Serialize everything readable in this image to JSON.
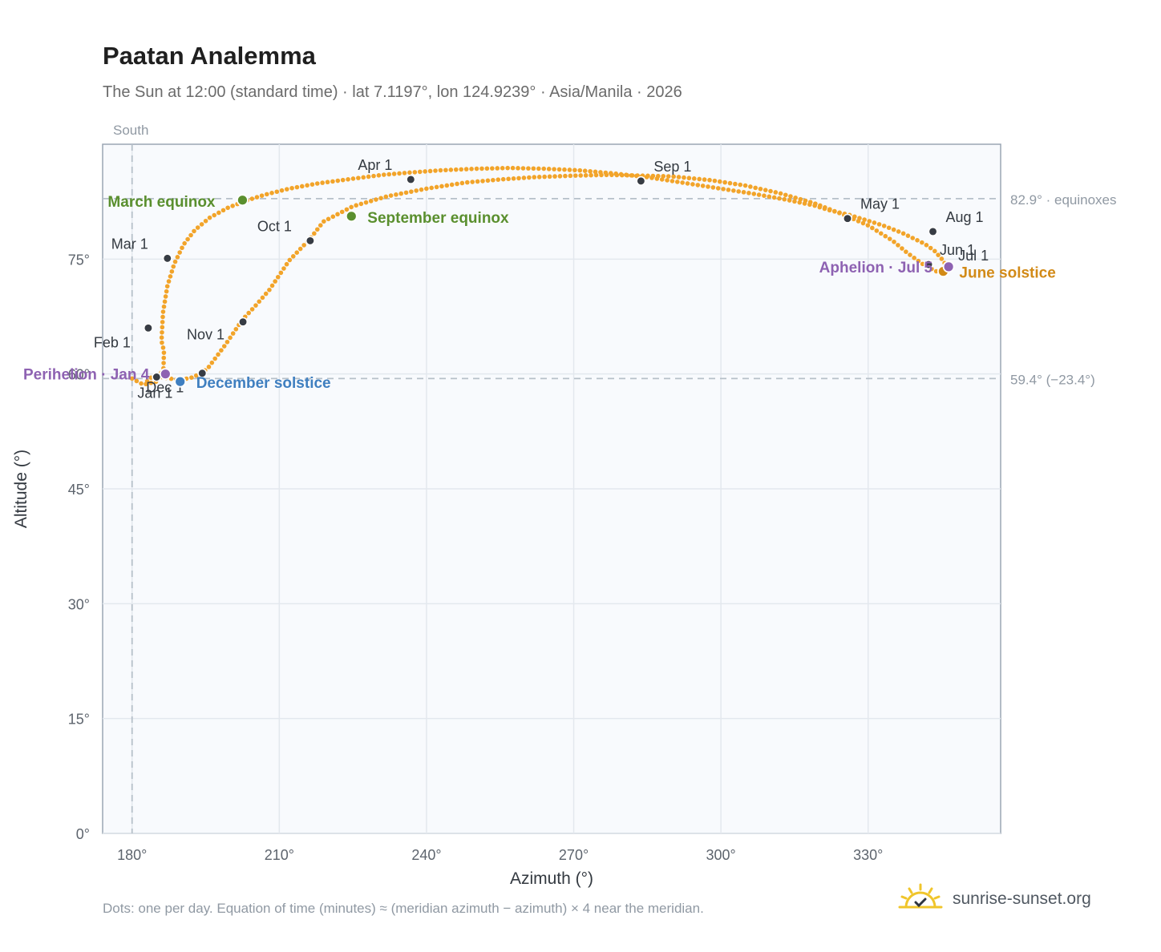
{
  "header": {
    "title": "Paatan Analemma",
    "subtitle": "The Sun at 12:00 (standard time) · lat 7.1197°, lon 124.9239° · Asia/Manila · 2026"
  },
  "footer": {
    "note": "Dots: one per day. Equation of time (minutes) ≈ (meridian azimuth − azimuth) × 4 near the meridian.",
    "brand": "sunrise-sunset.org",
    "brand_icon": "sun-icon"
  },
  "colors": {
    "path": "#f2a42a",
    "month_marker": "#373c44",
    "equinox": "#5a8f2e",
    "june_solstice": "#d28a17",
    "december_solstice": "#3f7fc0",
    "apsis": "#8e62b2",
    "reference_line": "#b6c0c9",
    "plot_background": "#f8fafd"
  },
  "chart_data": {
    "type": "scatter",
    "xlabel": "Azimuth (°)",
    "ylabel": "Altitude (°)",
    "xlim": [
      174,
      357
    ],
    "ylim": [
      0,
      90
    ],
    "x_ticks": [
      180,
      210,
      240,
      270,
      300,
      330
    ],
    "x_tick_labels": [
      "180°",
      "210°",
      "240°",
      "270°",
      "300°",
      "330°"
    ],
    "y_ticks": [
      0,
      15,
      30,
      45,
      60,
      75
    ],
    "y_tick_labels": [
      "0°",
      "15°",
      "30°",
      "45°",
      "60°",
      "75°"
    ],
    "grid": true,
    "meridian": {
      "azimuth": 180,
      "label": "South"
    },
    "reference_lines": [
      {
        "altitude": 82.9,
        "label": "82.9° · equinoxes"
      },
      {
        "altitude": 59.4,
        "label": "59.4° (−23.4°)"
      }
    ],
    "daily_path": [
      [
        180.0,
        59.4
      ],
      [
        182.3,
        58.6
      ],
      [
        184.9,
        59.0
      ],
      [
        186.4,
        60.7
      ],
      [
        186.5,
        63.0
      ],
      [
        186.0,
        64.3
      ],
      [
        186.3,
        68.0
      ],
      [
        187.2,
        71.5
      ],
      [
        188.6,
        74.4
      ],
      [
        190.5,
        76.9
      ],
      [
        192.8,
        78.8
      ],
      [
        195.8,
        80.4
      ],
      [
        199.5,
        81.7
      ],
      [
        203.1,
        82.6
      ],
      [
        207.0,
        83.4
      ],
      [
        212.0,
        84.2
      ],
      [
        218.0,
        84.9
      ],
      [
        225.0,
        85.5
      ],
      [
        231.0,
        86.0
      ],
      [
        236.5,
        86.3
      ],
      [
        243.0,
        86.6
      ],
      [
        250.0,
        86.8
      ],
      [
        257.0,
        86.9
      ],
      [
        264.0,
        86.8
      ],
      [
        271.0,
        86.6
      ],
      [
        278.0,
        86.2
      ],
      [
        285.0,
        85.7
      ],
      [
        292.0,
        85.0
      ],
      [
        299.0,
        84.3
      ],
      [
        306.0,
        83.6
      ],
      [
        313.0,
        82.8
      ],
      [
        319.0,
        82.0
      ],
      [
        322.0,
        81.4
      ],
      [
        326.0,
        80.8
      ],
      [
        329.0,
        80.2
      ],
      [
        333.0,
        79.4
      ],
      [
        337.0,
        78.4
      ],
      [
        341.5,
        77.0
      ],
      [
        343.5,
        76.1
      ],
      [
        345.3,
        74.8
      ],
      [
        346.2,
        73.8
      ],
      [
        345.7,
        73.2
      ],
      [
        344.5,
        73.2
      ],
      [
        343.0,
        73.7
      ],
      [
        341.0,
        74.4
      ],
      [
        338.0,
        75.8
      ],
      [
        335.0,
        77.4
      ],
      [
        330.0,
        79.4
      ],
      [
        325.0,
        80.8
      ],
      [
        319.0,
        82.3
      ],
      [
        312.0,
        83.6
      ],
      [
        305.0,
        84.6
      ],
      [
        298.0,
        85.3
      ],
      [
        290.0,
        85.8
      ],
      [
        284.0,
        85.9
      ],
      [
        277.0,
        86.0
      ],
      [
        270.0,
        85.9
      ],
      [
        262.0,
        85.7
      ],
      [
        255.0,
        85.4
      ],
      [
        248.0,
        85.0
      ],
      [
        240.0,
        84.2
      ],
      [
        232.0,
        83.2
      ],
      [
        225.0,
        81.9
      ],
      [
        219.0,
        79.9
      ],
      [
        216.2,
        77.6
      ],
      [
        212.0,
        74.8
      ],
      [
        208.0,
        71.0
      ],
      [
        205.0,
        68.8
      ],
      [
        202.5,
        67.1
      ],
      [
        199.0,
        63.8
      ],
      [
        195.5,
        60.8
      ],
      [
        194.2,
        60.1
      ],
      [
        192.0,
        59.5
      ],
      [
        189.5,
        59.2
      ],
      [
        186.0,
        59.6
      ],
      [
        184.0,
        59.6
      ],
      [
        182.3,
        58.6
      ]
    ],
    "month_markers": [
      {
        "label": "Jan 1",
        "az": 185.0,
        "alt": 59.6
      },
      {
        "label": "Feb 1",
        "az": 183.3,
        "alt": 66.0
      },
      {
        "label": "Mar 1",
        "az": 187.2,
        "alt": 75.1
      },
      {
        "label": "Apr 1",
        "az": 236.8,
        "alt": 85.4
      },
      {
        "label": "May 1",
        "az": 325.8,
        "alt": 80.3
      },
      {
        "label": "Jun 1",
        "az": 342.3,
        "alt": 74.3
      },
      {
        "label": "Jul 1",
        "az": 346.4,
        "alt": 74.0
      },
      {
        "label": "Aug 1",
        "az": 343.2,
        "alt": 78.6
      },
      {
        "label": "Sep 1",
        "az": 283.7,
        "alt": 85.2
      },
      {
        "label": "Oct 1",
        "az": 216.3,
        "alt": 77.4
      },
      {
        "label": "Nov 1",
        "az": 202.6,
        "alt": 66.8
      },
      {
        "label": "Dec 1",
        "az": 194.3,
        "alt": 60.1
      }
    ],
    "events": [
      {
        "label": "March equinox",
        "az": 202.5,
        "alt": 82.7,
        "color": "#5a8f2e"
      },
      {
        "label": "September equinox",
        "az": 224.7,
        "alt": 80.6,
        "color": "#5a8f2e"
      },
      {
        "label": "June solstice",
        "az": 345.3,
        "alt": 73.4,
        "color": "#d28a17"
      },
      {
        "label": "December solstice",
        "az": 189.8,
        "alt": 59.0,
        "color": "#3f7fc0"
      },
      {
        "label": "Perihelion · Jan 4",
        "az": 186.8,
        "alt": 60.0,
        "color": "#8e62b2"
      },
      {
        "label": "Aphelion · Jul 5",
        "az": 346.4,
        "alt": 74.0,
        "color": "#8e62b2"
      }
    ]
  }
}
